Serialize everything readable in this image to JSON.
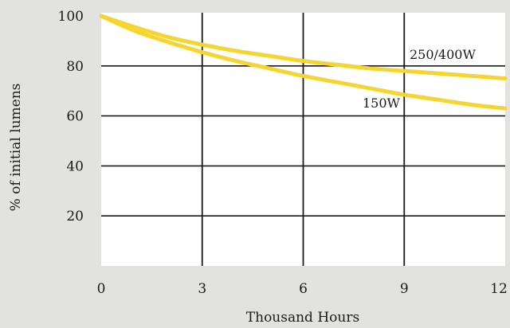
{
  "chart_data": {
    "type": "line",
    "xlabel": "Thousand Hours",
    "ylabel": "% of initial lumens",
    "xlim": [
      0,
      12
    ],
    "ylim": [
      0,
      100
    ],
    "x_ticks": [
      0,
      3,
      6,
      9,
      12
    ],
    "y_ticks": [
      20,
      40,
      60,
      80,
      100
    ],
    "grid": true,
    "series": [
      {
        "name": "250/400W",
        "x": [
          0,
          1,
          2,
          3,
          4,
          5,
          6,
          7,
          8,
          9,
          10,
          11,
          12
        ],
        "values": [
          100,
          95.5,
          91.5,
          88.5,
          86,
          84,
          82,
          80.5,
          79,
          78,
          77,
          76,
          75
        ],
        "color": "#f5d630"
      },
      {
        "name": "150W",
        "x": [
          0,
          1,
          2,
          3,
          4,
          5,
          6,
          7,
          8,
          9,
          10,
          11,
          12
        ],
        "values": [
          100,
          94,
          89.5,
          85.5,
          82,
          79,
          76,
          73.5,
          71,
          68.5,
          66.5,
          64.5,
          63
        ],
        "color": "#f5d630"
      }
    ],
    "annotations": [
      "250/400W",
      "150W"
    ],
    "colors": {
      "plot_background": "#ffffff",
      "page_background": "#e2e2e0",
      "grid": "#1a1a1a",
      "line": "#f5d630"
    }
  }
}
